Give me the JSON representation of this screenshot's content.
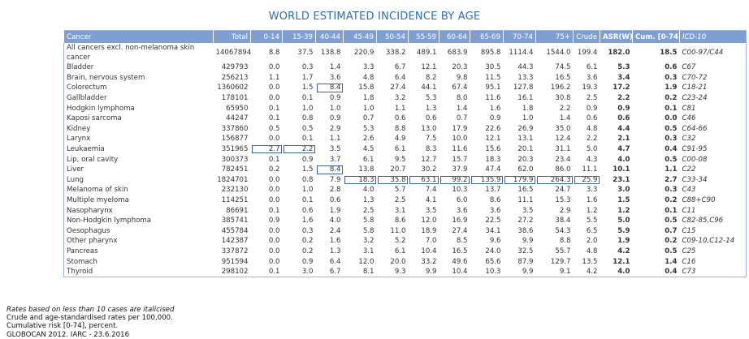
{
  "title": "WORLD ESTIMATED INCIDENCE BY AGE",
  "table": {
    "header": [
      "Cancer",
      "Total",
      "0-14",
      "15-39",
      "40-44",
      "45-49",
      "50-54",
      "55-59",
      "60-64",
      "65-69",
      "70-74",
      "75+",
      "Crude",
      "ASR(W)",
      "Cum. [0-74]",
      "ICD-10"
    ],
    "rows": [
      [
        "All cancers excl. non-melanoma skin cancer",
        "14067894",
        "8.8",
        "37.5",
        "138.8",
        "220.9",
        "338.2",
        "489.1",
        "683.9",
        "895.8",
        "1114.4",
        "1544.0",
        "199.4",
        "182.0",
        "18.5",
        "C00-97/C44"
      ],
      [
        "Bladder",
        "429793",
        "0.0",
        "0.3",
        "1.4",
        "3.3",
        "6.7",
        "12.1",
        "20.3",
        "30.5",
        "44.3",
        "74.5",
        "6.1",
        "5.3",
        "0.6",
        "C67"
      ],
      [
        "Brain, nervous system",
        "256213",
        "1.1",
        "1.7",
        "3.6",
        "4.8",
        "6.4",
        "8.2",
        "9.8",
        "11.5",
        "13.3",
        "16.5",
        "3.6",
        "3.4",
        "0.3",
        "C70-72"
      ],
      [
        "Colorectum",
        "1360602",
        "0.0",
        "1.5",
        "8.4",
        "15.8",
        "27.4",
        "44.1",
        "67.4",
        "95.1",
        "127.8",
        "196.2",
        "19.3",
        "17.2",
        "1.9",
        "C18-21"
      ],
      [
        "Gallbladder",
        "178101",
        "0.0",
        "0.1",
        "0.9",
        "1.8",
        "3.2",
        "5.3",
        "8.0",
        "11.6",
        "16.1",
        "30.8",
        "2.5",
        "2.2",
        "0.2",
        "C23-24"
      ],
      [
        "Hodgkin lymphoma",
        "65950",
        "0.1",
        "1.0",
        "1.0",
        "1.0",
        "1.1",
        "1.3",
        "1.4",
        "1.6",
        "1.8",
        "2.2",
        "0.9",
        "0.9",
        "0.1",
        "C81"
      ],
      [
        "Kaposi sarcoma",
        "44247",
        "0.1",
        "0.8",
        "0.9",
        "0.7",
        "0.6",
        "0.6",
        "0.7",
        "0.9",
        "1.0",
        "1.4",
        "0.6",
        "0.6",
        "0.0",
        "C46"
      ],
      [
        "Kidney",
        "337860",
        "0.5",
        "0.5",
        "2.9",
        "5.3",
        "8.8",
        "13.0",
        "17.9",
        "22.6",
        "26.9",
        "35.0",
        "4.8",
        "4.4",
        "0.5",
        "C64-66"
      ],
      [
        "Larynx",
        "156877",
        "0.0",
        "0.1",
        "1.1",
        "2.6",
        "4.9",
        "7.5",
        "10.0",
        "12.1",
        "13.1",
        "12.4",
        "2.2",
        "2.1",
        "0.3",
        "C32"
      ],
      [
        "Leukaemia",
        "351965",
        "2.7",
        "2.2",
        "3.5",
        "4.5",
        "6.1",
        "8.3",
        "11.6",
        "15.6",
        "20.1",
        "31.1",
        "5.0",
        "4.7",
        "0.4",
        "C91-95"
      ],
      [
        "Lip, oral cavity",
        "300373",
        "0.1",
        "0.9",
        "3.7",
        "6.1",
        "9.5",
        "12.7",
        "15.7",
        "18.3",
        "20.3",
        "23.4",
        "4.3",
        "4.0",
        "0.5",
        "C00-08"
      ],
      [
        "Liver",
        "782451",
        "0.2",
        "1.5",
        "8.4",
        "13.8",
        "20.7",
        "30.2",
        "37.9",
        "47.4",
        "62.0",
        "86.0",
        "11.1",
        "10.1",
        "1.1",
        "C22"
      ],
      [
        "Lung",
        "1824701",
        "0.0",
        "0.8",
        "7.9",
        "18.3",
        "35.8",
        "63.1",
        "99.2",
        "135.9",
        "179.9",
        "264.3",
        "25.9",
        "23.1",
        "2.7",
        "C33-34"
      ],
      [
        "Melanoma of skin",
        "232130",
        "0.0",
        "1.0",
        "2.8",
        "4.0",
        "5.7",
        "7.4",
        "10.3",
        "13.7",
        "16.5",
        "24.7",
        "3.3",
        "3.0",
        "0.3",
        "C43"
      ],
      [
        "Multiple myeloma",
        "114251",
        "0.0",
        "0.1",
        "0.6",
        "1.3",
        "2.5",
        "4.1",
        "6.0",
        "8.6",
        "11.1",
        "15.3",
        "1.6",
        "1.5",
        "0.2",
        "C88+C90"
      ],
      [
        "Nasopharynx",
        "86691",
        "0.1",
        "0.6",
        "1.9",
        "2.5",
        "3.1",
        "3.5",
        "3.6",
        "3.6",
        "3.5",
        "2.9",
        "1.2",
        "1.2",
        "0.1",
        "C11"
      ],
      [
        "Non-Hodgkin lymphoma",
        "385741",
        "0.9",
        "1.6",
        "4.0",
        "5.8",
        "8.6",
        "12.0",
        "16.9",
        "22.5",
        "27.2",
        "38.4",
        "5.5",
        "5.0",
        "0.5",
        "C82-85,C96"
      ],
      [
        "Oesophagus",
        "455784",
        "0.0",
        "0.3",
        "2.4",
        "5.8",
        "11.0",
        "18.9",
        "27.4",
        "34.1",
        "38.6",
        "54.3",
        "6.5",
        "5.9",
        "0.7",
        "C15"
      ],
      [
        "Other pharynx",
        "142387",
        "0.0",
        "0.2",
        "1.6",
        "3.2",
        "5.2",
        "7.0",
        "8.5",
        "9.6",
        "9.9",
        "8.8",
        "2.0",
        "1.9",
        "0.2",
        "C09-10,C12-14"
      ],
      [
        "Pancreas",
        "337872",
        "0.0",
        "0.2",
        "1.3",
        "3.1",
        "6.1",
        "10.4",
        "16.5",
        "24.0",
        "32.5",
        "55.7",
        "4.8",
        "4.2",
        "0.5",
        "C25"
      ],
      [
        "Stomach",
        "951594",
        "0.0",
        "0.9",
        "6.4",
        "12.0",
        "20.0",
        "33.2",
        "49.6",
        "65.6",
        "87.9",
        "129.7",
        "13.5",
        "12.1",
        "1.4",
        "C16"
      ],
      [
        "Thyroid",
        "298102",
        "0.1",
        "3.0",
        "6.7",
        "8.1",
        "9.3",
        "9.9",
        "10.4",
        "10.3",
        "9.9",
        "9.1",
        "4.2",
        "4.0",
        "0.4",
        "C73"
      ]
    ]
  },
  "notes": [
    "Rates based on less than 10 cases are italicised",
    "Crude and age-standardised rates per 100,000.",
    "Cumulative risk [0-74], percent.",
    "GLOBOCAN 2012. IARC - 23.6.2016"
  ]
}
